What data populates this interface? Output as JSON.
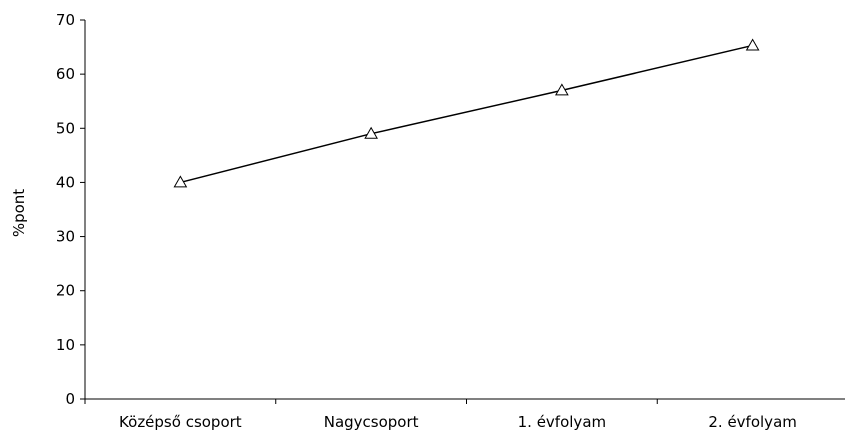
{
  "chart_data": {
    "type": "line",
    "categories": [
      "Középső csoport",
      "Nagycsoport",
      "1. évfolyam",
      "2. évfolyam"
    ],
    "series": [
      {
        "values": [
          40,
          49,
          57,
          65.3
        ],
        "color": "#000000",
        "marker": "triangle-open"
      }
    ],
    "ylabel": "%pont",
    "ylim": [
      0,
      70
    ],
    "yticks": [
      0,
      10,
      20,
      30,
      40,
      50,
      60,
      70
    ],
    "grid": false,
    "legend": "none"
  }
}
